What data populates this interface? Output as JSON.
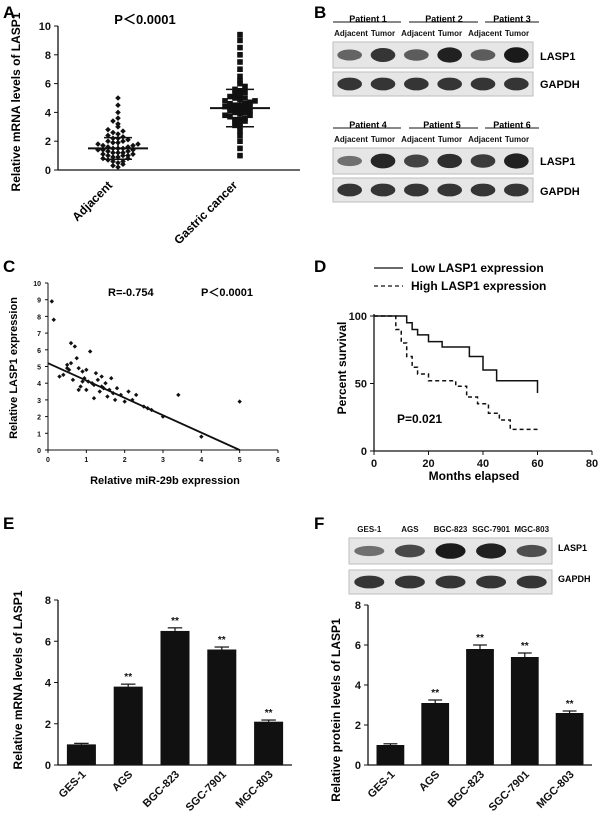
{
  "figure": {
    "panel_letters": [
      "A",
      "B",
      "C",
      "D",
      "E",
      "F"
    ]
  },
  "colors": {
    "ink": "#111111",
    "blot_bg": "#e6e6e6",
    "band": "#1a1a1a",
    "panel_bg": "#ffffff"
  },
  "chart_data": [
    {
      "panel": "A",
      "type": "scatter",
      "title": "P＜0.0001",
      "ylabel": "Relative mRNA levels of LASP1",
      "categories": [
        "Adjacent",
        "Gastric cancer"
      ],
      "ylim": [
        0,
        10
      ],
      "yticks": [
        0,
        2,
        4,
        6,
        8,
        10
      ],
      "markers": [
        "diamond",
        "square"
      ],
      "groups": [
        {
          "name": "Adjacent",
          "values": [
            0.2,
            0.3,
            0.4,
            0.5,
            0.6,
            0.6,
            0.7,
            0.8,
            0.8,
            0.9,
            0.9,
            1.0,
            1.0,
            1.0,
            1.1,
            1.1,
            1.2,
            1.2,
            1.2,
            1.3,
            1.3,
            1.4,
            1.4,
            1.4,
            1.5,
            1.5,
            1.5,
            1.6,
            1.6,
            1.7,
            1.7,
            1.8,
            1.8,
            1.9,
            1.9,
            2.0,
            2.0,
            2.1,
            2.2,
            2.2,
            2.3,
            2.4,
            2.5,
            2.6,
            2.7,
            2.8,
            3.0,
            3.2,
            3.4,
            3.6,
            4.0,
            4.5,
            5.0
          ],
          "mean": 1.5,
          "sd": 0.75
        },
        {
          "name": "Gastric cancer",
          "values": [
            1.0,
            1.5,
            2.0,
            2.4,
            2.7,
            3.0,
            3.1,
            3.2,
            3.3,
            3.4,
            3.5,
            3.5,
            3.6,
            3.7,
            3.8,
            3.8,
            3.9,
            4.0,
            4.0,
            4.1,
            4.1,
            4.2,
            4.2,
            4.3,
            4.3,
            4.4,
            4.4,
            4.5,
            4.5,
            4.6,
            4.6,
            4.7,
            4.8,
            4.8,
            4.9,
            5.0,
            5.0,
            5.1,
            5.2,
            5.3,
            5.4,
            5.5,
            5.6,
            5.8,
            6.0,
            6.2,
            6.5,
            7.0,
            7.5,
            8.0,
            8.5,
            9.0,
            9.4
          ],
          "mean": 4.3,
          "sd": 1.3
        }
      ]
    },
    {
      "panel": "C",
      "type": "scatter",
      "title": "",
      "annotation_r": "R=-0.754",
      "annotation_p": "P＜0.0001",
      "xlabel": "Relative miR-29b expression",
      "ylabel": "Relative LASP1 expression",
      "xlim": [
        0,
        6
      ],
      "ylim": [
        0,
        10
      ],
      "xticks": [
        0,
        1,
        2,
        3,
        4,
        5,
        6
      ],
      "yticks": [
        0,
        1,
        2,
        3,
        4,
        5,
        6,
        7,
        8,
        9,
        10
      ],
      "x": [
        0.1,
        0.15,
        0.3,
        0.4,
        0.5,
        0.55,
        0.6,
        0.65,
        0.7,
        0.75,
        0.8,
        0.85,
        0.9,
        0.95,
        1.0,
        1.05,
        1.1,
        1.15,
        1.2,
        1.25,
        1.3,
        1.35,
        1.4,
        1.45,
        1.5,
        1.55,
        1.6,
        1.65,
        1.7,
        1.75,
        1.8,
        1.9,
        2.0,
        2.1,
        2.2,
        2.3,
        2.5,
        2.6,
        2.7,
        3.0,
        3.4,
        4.0,
        5.0,
        0.5,
        0.8,
        1.2,
        0.6,
        1.0,
        1.4,
        0.9
      ],
      "y": [
        8.9,
        7.8,
        4.4,
        4.5,
        5.1,
        4.8,
        6.4,
        4.2,
        6.2,
        5.5,
        4.9,
        3.8,
        4.7,
        4.3,
        3.6,
        4.1,
        5.9,
        4.0,
        3.9,
        4.6,
        4.2,
        3.5,
        4.4,
        3.7,
        4.0,
        3.2,
        3.6,
        4.3,
        3.4,
        3.0,
        3.7,
        3.3,
        2.9,
        3.5,
        3.0,
        3.3,
        2.6,
        2.5,
        2.4,
        2.0,
        3.3,
        0.8,
        2.9,
        4.9,
        3.6,
        3.1,
        5.2,
        4.8,
        3.8,
        4.1
      ],
      "fit_line": {
        "x": [
          0,
          5.0
        ],
        "y": [
          5.2,
          0
        ]
      }
    },
    {
      "panel": "D",
      "type": "line",
      "xlabel": "Months elapsed",
      "ylabel": "Percent survival",
      "xlim": [
        0,
        80
      ],
      "ylim": [
        0,
        100
      ],
      "xticks": [
        0,
        20,
        40,
        60,
        80
      ],
      "yticks": [
        0,
        50,
        100
      ],
      "annotation": "P=0.021",
      "series": [
        {
          "name": "Low LASP1 expression",
          "style": "solid",
          "x": [
            0,
            10,
            12,
            14,
            16,
            20,
            25,
            30,
            35,
            40,
            45,
            60
          ],
          "y": [
            100,
            100,
            95,
            90,
            86,
            81,
            77,
            77,
            70,
            60,
            52,
            43
          ]
        },
        {
          "name": "High LASP1 expression",
          "style": "dashed",
          "x": [
            0,
            8,
            10,
            12,
            14,
            16,
            20,
            25,
            30,
            34,
            38,
            42,
            46,
            50,
            60
          ],
          "y": [
            100,
            90,
            80,
            70,
            62,
            57,
            52,
            52,
            48,
            40,
            35,
            28,
            23,
            16,
            16
          ]
        }
      ]
    },
    {
      "panel": "E",
      "type": "bar",
      "ylabel": "Relative mRNA levels of LASP1",
      "categories": [
        "GES-1",
        "AGS",
        "BGC-823",
        "SGC-7901",
        "MGC-803"
      ],
      "values": [
        1.0,
        3.8,
        6.5,
        5.6,
        2.1
      ],
      "errors": [
        0.05,
        0.12,
        0.15,
        0.12,
        0.08
      ],
      "significance": [
        "",
        "**",
        "**",
        "**",
        "**"
      ],
      "ylim": [
        0,
        8
      ],
      "yticks": [
        0,
        2,
        4,
        6,
        8
      ]
    },
    {
      "panel": "F",
      "type": "bar",
      "ylabel": "Relative protein levels of LASP1",
      "categories": [
        "GES-1",
        "AGS",
        "BGC-823",
        "SGC-7901",
        "MGC-803"
      ],
      "values": [
        1.0,
        3.1,
        5.8,
        5.4,
        2.6
      ],
      "errors": [
        0.06,
        0.15,
        0.2,
        0.2,
        0.1
      ],
      "significance": [
        "",
        "**",
        "**",
        "**",
        "**"
      ],
      "ylim": [
        0,
        8
      ],
      "yticks": [
        0,
        2,
        4,
        6,
        8
      ]
    }
  ],
  "blots": {
    "B": {
      "groups_top": [
        "Patient 1",
        "Patient 2",
        "Patient 3"
      ],
      "groups_bottom": [
        "Patient 4",
        "Patient 5",
        "Patient 6"
      ],
      "lane_label_adjacent": "Adjacent",
      "lane_label_tumor": "Tumor",
      "bands": [
        "LASP1",
        "GAPDH"
      ],
      "lasp1_intensity_top": [
        0.45,
        0.8,
        0.5,
        0.95,
        0.5,
        1.0
      ],
      "lasp1_intensity_bottom": [
        0.35,
        0.9,
        0.7,
        0.85,
        0.75,
        0.95
      ]
    },
    "F": {
      "lanes": [
        "GES-1",
        "AGS",
        "BGC-823",
        "SGC-7901",
        "MGC-803"
      ],
      "bands": [
        "LASP1",
        "GAPDH"
      ],
      "lasp1_intensity": [
        0.35,
        0.65,
        1.0,
        0.95,
        0.6
      ]
    }
  }
}
